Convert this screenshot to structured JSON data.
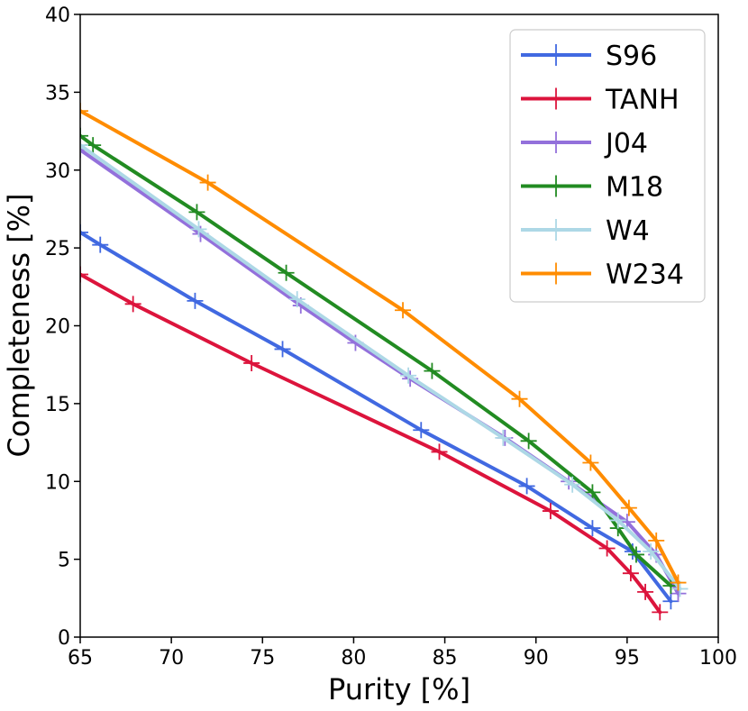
{
  "chart_data": {
    "type": "line",
    "title": "",
    "xlabel": "Purity [%]",
    "ylabel": "Completeness [%]",
    "xlim": [
      65,
      100
    ],
    "ylim": [
      0,
      40
    ],
    "xticks": [
      65,
      70,
      75,
      80,
      85,
      90,
      95,
      100
    ],
    "yticks": [
      0,
      5,
      10,
      15,
      20,
      25,
      30,
      35,
      40
    ],
    "grid": false,
    "legend_position": "top-right",
    "series": [
      {
        "name": "S96",
        "color": "#4169e1",
        "x": [
          65.0,
          66.1,
          71.3,
          76.1,
          83.7,
          89.5,
          93.1,
          95.3,
          97.4
        ],
        "y": [
          26.0,
          25.2,
          21.6,
          18.5,
          13.3,
          9.7,
          7.0,
          5.5,
          2.3
        ]
      },
      {
        "name": "TANH",
        "color": "#dc143c",
        "x": [
          65.0,
          67.9,
          74.4,
          84.7,
          90.8,
          93.9,
          95.2,
          96.0,
          96.8
        ],
        "y": [
          23.3,
          21.4,
          17.6,
          11.9,
          8.1,
          5.7,
          4.1,
          2.9,
          1.6
        ]
      },
      {
        "name": "J04",
        "color": "#9370db",
        "x": [
          65.0,
          71.6,
          77.1,
          80.1,
          83.1,
          88.3,
          91.8,
          95.0,
          96.6,
          97.8
        ],
        "y": [
          31.3,
          25.9,
          21.3,
          18.9,
          16.6,
          12.8,
          10.0,
          7.4,
          5.3,
          2.8
        ]
      },
      {
        "name": "M18",
        "color": "#228b22",
        "x": [
          65.0,
          65.7,
          71.4,
          76.3,
          84.3,
          89.6,
          93.1,
          94.5,
          95.5,
          97.4
        ],
        "y": [
          32.2,
          31.6,
          27.3,
          23.4,
          17.1,
          12.6,
          9.3,
          7.0,
          5.3,
          3.3
        ]
      },
      {
        "name": "W4",
        "color": "#add8e6",
        "x": [
          65.0,
          71.5,
          76.9,
          83.0,
          88.2,
          92.0,
          94.5,
          96.3,
          97.9
        ],
        "y": [
          31.6,
          26.2,
          21.7,
          16.8,
          12.8,
          9.8,
          7.5,
          5.5,
          3.1
        ]
      },
      {
        "name": "W234",
        "color": "#ff8c00",
        "x": [
          65.0,
          72.0,
          82.7,
          89.1,
          93.0,
          95.1,
          96.6,
          97.8
        ],
        "y": [
          33.8,
          29.2,
          21.0,
          15.3,
          11.2,
          8.3,
          6.2,
          3.5
        ]
      }
    ]
  }
}
